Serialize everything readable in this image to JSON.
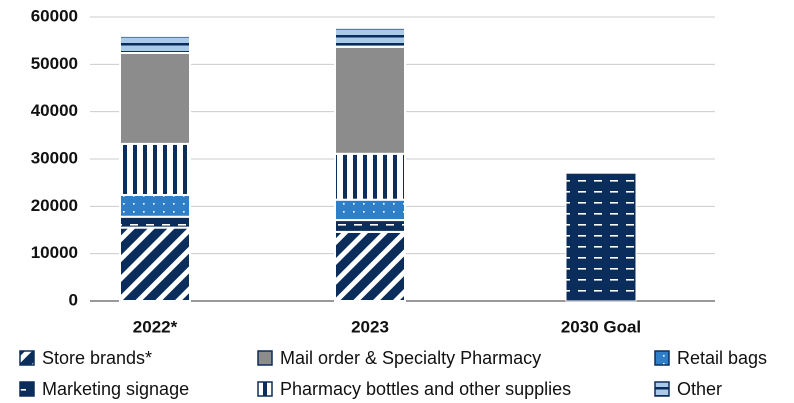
{
  "chart_data": {
    "type": "stacked_bar",
    "categories": [
      "2022*",
      "2023",
      "2030 Goal"
    ],
    "series": [
      {
        "name": "Store brands*",
        "color": "#0b2d5b",
        "pattern": "diagonal",
        "values": [
          15500,
          14600,
          null
        ]
      },
      {
        "name": "Marketing signage",
        "color": "#0b2d5b",
        "pattern": "dashes",
        "values": [
          2300,
          2500,
          null
        ]
      },
      {
        "name": "Retail bags",
        "color": "#2f7fc8",
        "pattern": "dots",
        "values": [
          4600,
          4300,
          null
        ]
      },
      {
        "name": "Pharmacy bottles and other supplies",
        "color": "#0b2d5b",
        "pattern": "vertical",
        "values": [
          10800,
          9700,
          null
        ]
      },
      {
        "name": "Mail order & Specialty Pharmacy",
        "color": "#8c8c8c",
        "pattern": "solid",
        "values": [
          19200,
          22600,
          null
        ]
      },
      {
        "name": "Other",
        "color": "#a9cbe8",
        "pattern": "horizontal",
        "values": [
          3600,
          4000,
          null
        ]
      }
    ],
    "goal": {
      "category": 2,
      "value": 27000,
      "color": "#0b2d5b",
      "pattern": "dashes"
    },
    "ylim": [
      0,
      60000
    ],
    "yticks": [
      0,
      10000,
      20000,
      30000,
      40000,
      50000,
      60000
    ],
    "grid": true
  }
}
